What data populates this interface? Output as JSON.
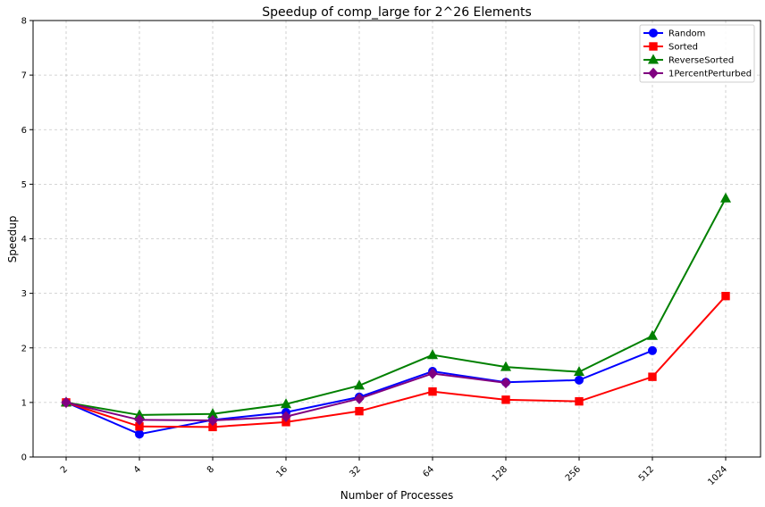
{
  "chart_data": {
    "type": "line",
    "title": "Speedup of comp_large for 2^26 Elements",
    "xlabel": "Number of Processes",
    "ylabel": "Speedup",
    "x": [
      "2",
      "4",
      "8",
      "16",
      "32",
      "64",
      "128",
      "256",
      "512",
      "1024"
    ],
    "ylim": [
      0,
      8
    ],
    "yticks": [
      "0",
      "1",
      "2",
      "3",
      "4",
      "5",
      "6",
      "7",
      "8"
    ],
    "grid": true,
    "grid_style": "dashed",
    "legend_position": "top-right",
    "x_tick_rotation": -45,
    "series": [
      {
        "name": "Random",
        "color": "#0000ff",
        "marker": "circle",
        "values": [
          1.0,
          0.42,
          0.68,
          0.82,
          1.1,
          1.57,
          1.37,
          1.41,
          1.95,
          null
        ]
      },
      {
        "name": "Sorted",
        "color": "#ff0000",
        "marker": "square",
        "values": [
          1.0,
          0.56,
          0.55,
          0.64,
          0.84,
          1.2,
          1.05,
          1.02,
          1.47,
          2.95
        ]
      },
      {
        "name": "ReverseSorted",
        "color": "#008000",
        "marker": "triangle",
        "values": [
          1.0,
          0.77,
          0.79,
          0.97,
          1.31,
          1.87,
          1.65,
          1.56,
          2.22,
          4.74
        ]
      },
      {
        "name": "1PercentPerturbed",
        "color": "#800080",
        "marker": "diamond",
        "values": [
          1.0,
          0.68,
          0.67,
          0.74,
          1.07,
          1.53,
          1.36,
          null,
          null,
          null
        ]
      }
    ]
  }
}
